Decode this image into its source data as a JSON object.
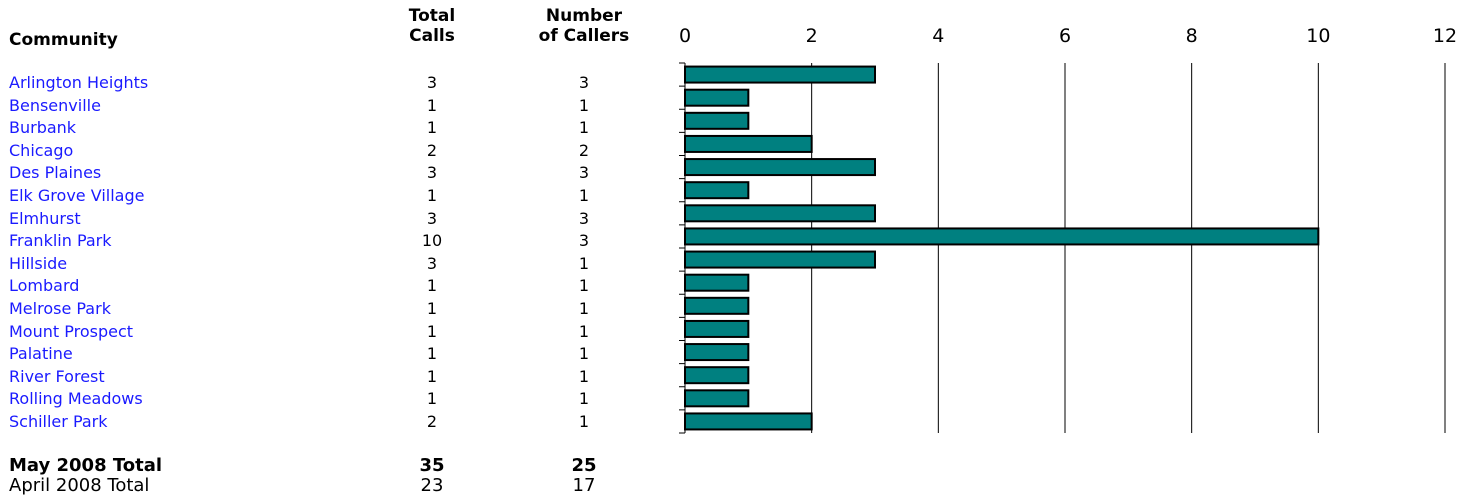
{
  "headers": {
    "community": "Community",
    "total_calls": [
      "Total",
      "Calls"
    ],
    "number_of_callers": [
      "Number",
      "of Callers"
    ]
  },
  "rows": [
    {
      "community": "Arlington Heights",
      "total_calls": "3",
      "callers": "3"
    },
    {
      "community": "Bensenville",
      "total_calls": "1",
      "callers": "1"
    },
    {
      "community": "Burbank",
      "total_calls": "1",
      "callers": "1"
    },
    {
      "community": "Chicago",
      "total_calls": "2",
      "callers": "2"
    },
    {
      "community": "Des Plaines",
      "total_calls": "3",
      "callers": "3"
    },
    {
      "community": "Elk Grove Village",
      "total_calls": "1",
      "callers": "1"
    },
    {
      "community": "Elmhurst",
      "total_calls": "3",
      "callers": "3"
    },
    {
      "community": "Franklin Park",
      "total_calls": "10",
      "callers": "3"
    },
    {
      "community": "Hillside",
      "total_calls": "3",
      "callers": "1"
    },
    {
      "community": "Lombard",
      "total_calls": "1",
      "callers": "1"
    },
    {
      "community": "Melrose Park",
      "total_calls": "1",
      "callers": "1"
    },
    {
      "community": "Mount Prospect",
      "total_calls": "1",
      "callers": "1"
    },
    {
      "community": "Palatine",
      "total_calls": "1",
      "callers": "1"
    },
    {
      "community": "River Forest",
      "total_calls": "1",
      "callers": "1"
    },
    {
      "community": "Rolling Meadows",
      "total_calls": "1",
      "callers": "1"
    },
    {
      "community": "Schiller Park",
      "total_calls": "2",
      "callers": "1"
    }
  ],
  "totals": {
    "current": {
      "label": "May 2008 Total",
      "calls": "35",
      "callers": "25"
    },
    "previous": {
      "label": "April 2008 Total",
      "calls": "23",
      "callers": "17"
    }
  },
  "colors": {
    "bar_fill": "#008080",
    "bar_stroke": "#000000",
    "link_text": "#1a1aff"
  },
  "chart_data": {
    "type": "bar",
    "orientation": "horizontal",
    "categories": [
      "Arlington Heights",
      "Bensenville",
      "Burbank",
      "Chicago",
      "Des Plaines",
      "Elk Grove Village",
      "Elmhurst",
      "Franklin Park",
      "Hillside",
      "Lombard",
      "Melrose Park",
      "Mount Prospect",
      "Palatine",
      "River Forest",
      "Rolling Meadows",
      "Schiller Park"
    ],
    "values": [
      3,
      1,
      1,
      2,
      3,
      1,
      3,
      10,
      3,
      1,
      1,
      1,
      1,
      1,
      1,
      2
    ],
    "xlim": [
      0,
      12
    ],
    "x_ticks": [
      0,
      2,
      4,
      6,
      8,
      10,
      12
    ],
    "x_tick_labels": [
      "0",
      "2",
      "4",
      "6",
      "8",
      "10",
      "12"
    ],
    "x_tick_position": "top",
    "grid": "vertical",
    "title": "",
    "xlabel": "",
    "ylabel": ""
  }
}
